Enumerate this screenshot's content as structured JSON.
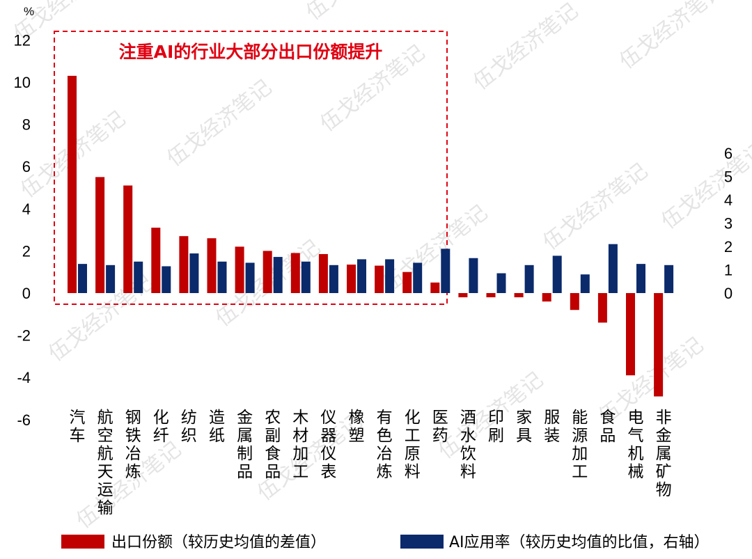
{
  "chart_data": {
    "type": "bar",
    "title": "",
    "y_unit": "%",
    "left_axis": {
      "ylim": [
        -6,
        12
      ],
      "ticks": [
        "12",
        "10",
        "8",
        "6",
        "4",
        "2",
        "0",
        "-2",
        "-4",
        "-6"
      ]
    },
    "right_axis": {
      "ylim": [
        0,
        6
      ],
      "ticks": [
        "6",
        "5",
        "4",
        "3",
        "2",
        "1",
        "0"
      ]
    },
    "categories": [
      "汽车",
      "航空航天运输",
      "钢铁冶炼",
      "化纤",
      "纺织",
      "造纸",
      "金属制品",
      "农副食品",
      "木材加工",
      "仪器仪表",
      "橡塑",
      "有色冶炼",
      "化工原料",
      "医药",
      "酒水饮料",
      "印刷",
      "家具",
      "服装",
      "能源加工",
      "食品",
      "电气机械",
      "非金属矿物"
    ],
    "series": [
      {
        "name": "出口份额（较历史均值的差值）",
        "axis": "left",
        "color": "#c00000",
        "values": [
          10.3,
          5.5,
          5.1,
          3.1,
          2.7,
          2.6,
          2.2,
          2.0,
          1.9,
          1.85,
          1.35,
          1.3,
          1.0,
          0.5,
          -0.2,
          -0.2,
          -0.2,
          -0.4,
          -0.8,
          -1.4,
          -3.9,
          -4.9
        ]
      },
      {
        "name": "AI应用率（较历史均值的比值，右轴）",
        "axis": "right",
        "color": "#0b2a6b",
        "values": [
          1.25,
          1.2,
          1.35,
          1.15,
          1.7,
          1.35,
          1.3,
          1.55,
          1.35,
          1.2,
          1.45,
          1.45,
          1.3,
          1.9,
          1.5,
          0.85,
          1.2,
          1.6,
          0.8,
          2.1,
          1.25,
          1.2
        ]
      }
    ],
    "annotation": "注重AI的行业大部分出口份额提升",
    "legend": "bottom"
  },
  "watermark": "伍戈经济笔记"
}
